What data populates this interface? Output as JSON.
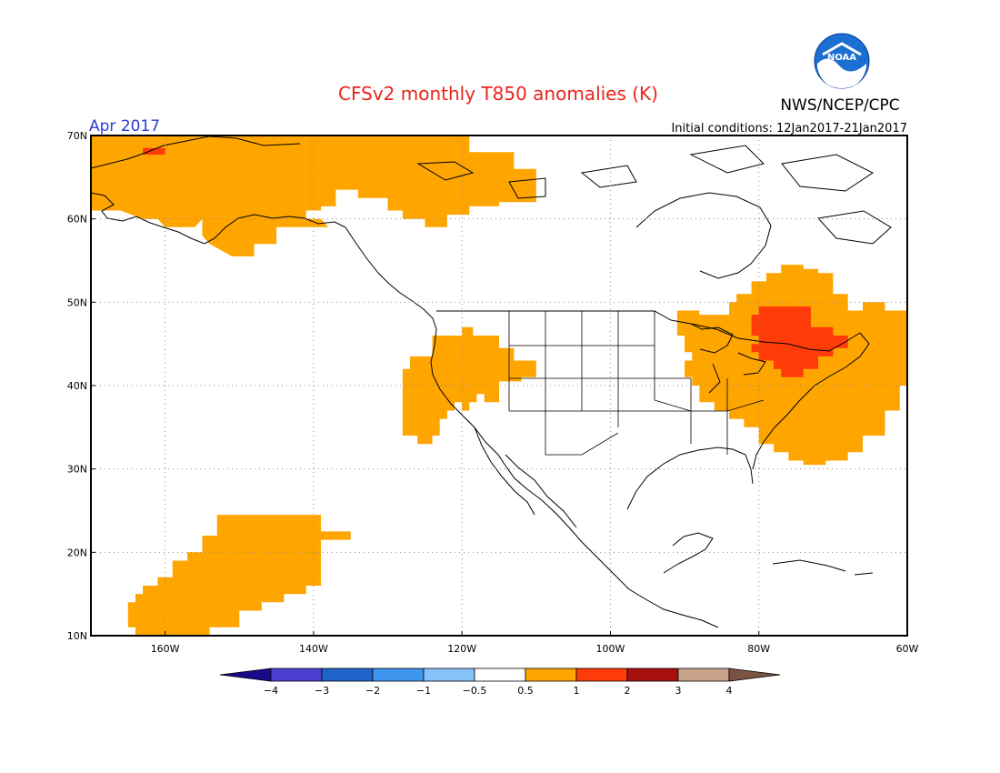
{
  "header": {
    "title": "CFSv2 monthly T850 anomalies (K)",
    "month": "Apr 2017",
    "agency": "NWS/NCEP/CPC",
    "logo_text": "NOAA",
    "initial_conditions": "Initial conditions: 12Jan2017-21Jan2017"
  },
  "map": {
    "lon_range": [
      -170,
      -60
    ],
    "lat_range": [
      10,
      70
    ],
    "grid_lines": true,
    "lat_labels": [
      "10N",
      "20N",
      "30N",
      "40N",
      "50N",
      "60N",
      "70N"
    ],
    "lon_labels": [
      "160W",
      "140W",
      "120W",
      "100W",
      "80W",
      "60W"
    ],
    "regions": [
      {
        "name": "alaska-yukon",
        "level": "0.5-1",
        "color": "#ffa500",
        "polygon": [
          [
            -170,
            70
          ],
          [
            -141,
            70
          ],
          [
            -141,
            60
          ],
          [
            -139,
            60
          ],
          [
            -138,
            59
          ],
          [
            -147,
            59
          ],
          [
            -147,
            58
          ],
          [
            -149,
            58
          ],
          [
            -149,
            59
          ],
          [
            -150,
            59
          ],
          [
            -150,
            60
          ],
          [
            -153,
            60
          ],
          [
            -155,
            60
          ],
          [
            -156,
            59
          ],
          [
            -158,
            59
          ],
          [
            -160,
            59
          ],
          [
            -161,
            60
          ],
          [
            -163,
            60
          ],
          [
            -166,
            61
          ],
          [
            -170,
            61
          ]
        ]
      },
      {
        "name": "alaska-south-lobe",
        "level": "0.5-1",
        "color": "#ffa500",
        "polygon": [
          [
            -155,
            61
          ],
          [
            -145,
            61
          ],
          [
            -145,
            57
          ],
          [
            -148,
            57
          ],
          [
            -148,
            55.5
          ],
          [
            -151,
            55.5
          ],
          [
            -153,
            56.5
          ],
          [
            -154,
            57
          ],
          [
            -155,
            58
          ]
        ]
      },
      {
        "name": "nw-canada",
        "level": "0.5-1",
        "color": "#ffa500",
        "polygon": [
          [
            -141,
            70
          ],
          [
            -119,
            70
          ],
          [
            -119,
            68
          ],
          [
            -113,
            68
          ],
          [
            -113,
            66
          ],
          [
            -110,
            66
          ],
          [
            -110,
            62
          ],
          [
            -115,
            62
          ],
          [
            -115,
            61.5
          ],
          [
            -119,
            61.5
          ],
          [
            -119,
            60.5
          ],
          [
            -122,
            60.5
          ],
          [
            -122,
            59
          ],
          [
            -125,
            59
          ],
          [
            -125,
            60
          ],
          [
            -128,
            60
          ],
          [
            -128,
            61
          ],
          [
            -130,
            61
          ],
          [
            -130,
            62.5
          ],
          [
            -134,
            62.5
          ],
          [
            -134,
            63.5
          ],
          [
            -137,
            63.5
          ],
          [
            -137,
            61.5
          ],
          [
            -139,
            61.5
          ],
          [
            -139,
            61
          ],
          [
            -141,
            61
          ]
        ]
      },
      {
        "name": "western-us",
        "level": "0.5-1",
        "color": "#ffa500",
        "polygon": [
          [
            -128,
            42
          ],
          [
            -127,
            42
          ],
          [
            -127,
            43.5
          ],
          [
            -124,
            43.5
          ],
          [
            -124,
            46
          ],
          [
            -120,
            46
          ],
          [
            -120,
            47
          ],
          [
            -118.5,
            47
          ],
          [
            -118.5,
            46
          ],
          [
            -115,
            46
          ],
          [
            -115,
            44.5
          ],
          [
            -113,
            44.5
          ],
          [
            -113,
            43
          ],
          [
            -110,
            43
          ],
          [
            -110,
            41
          ],
          [
            -112,
            41
          ],
          [
            -112,
            40.5
          ],
          [
            -115,
            40.5
          ],
          [
            -115,
            38
          ],
          [
            -117,
            38
          ],
          [
            -117,
            39
          ],
          [
            -118,
            39
          ],
          [
            -118,
            38
          ],
          [
            -119,
            38
          ],
          [
            -119,
            37
          ],
          [
            -120,
            37
          ],
          [
            -120,
            38
          ],
          [
            -121,
            38
          ],
          [
            -121,
            37
          ],
          [
            -122,
            37
          ],
          [
            -122,
            36
          ],
          [
            -123,
            36
          ],
          [
            -123,
            34
          ],
          [
            -124,
            34
          ],
          [
            -124,
            33
          ],
          [
            -126,
            33
          ],
          [
            -126,
            34
          ],
          [
            -128,
            34
          ]
        ]
      },
      {
        "name": "hawaii-region",
        "level": "0.5-1",
        "color": "#ffa500",
        "polygon": [
          [
            -165,
            12
          ],
          [
            -165,
            14
          ],
          [
            -164,
            14
          ],
          [
            -164,
            15
          ],
          [
            -163,
            15
          ],
          [
            -163,
            16
          ],
          [
            -161,
            16
          ],
          [
            -161,
            17
          ],
          [
            -159,
            17
          ],
          [
            -159,
            19
          ],
          [
            -157,
            19
          ],
          [
            -157,
            20
          ],
          [
            -155,
            20
          ],
          [
            -155,
            22
          ],
          [
            -153,
            22
          ],
          [
            -153,
            24.5
          ],
          [
            -139,
            24.5
          ],
          [
            -139,
            22.5
          ],
          [
            -135,
            22.5
          ],
          [
            -135,
            21.5
          ],
          [
            -139,
            21.5
          ],
          [
            -139,
            16
          ],
          [
            -141,
            16
          ],
          [
            -141,
            15
          ],
          [
            -144,
            15
          ],
          [
            -144,
            14
          ],
          [
            -147,
            14
          ],
          [
            -147,
            13
          ],
          [
            -150,
            13
          ],
          [
            -150,
            11
          ],
          [
            -154,
            11
          ],
          [
            -154,
            10
          ],
          [
            -164,
            10
          ],
          [
            -164,
            11
          ],
          [
            -165,
            11
          ]
        ]
      },
      {
        "name": "eastern-na",
        "level": "0.5-1",
        "color": "#ffa500",
        "polygon": [
          [
            -85,
            48.5
          ],
          [
            -84,
            48.5
          ],
          [
            -84,
            50
          ],
          [
            -83,
            50
          ],
          [
            -83,
            51
          ],
          [
            -81,
            51
          ],
          [
            -81,
            52.5
          ],
          [
            -79,
            52.5
          ],
          [
            -79,
            53.5
          ],
          [
            -77,
            53.5
          ],
          [
            -77,
            54.5
          ],
          [
            -74,
            54.5
          ],
          [
            -74,
            54
          ],
          [
            -72,
            54
          ],
          [
            -72,
            53.5
          ],
          [
            -70,
            53.5
          ],
          [
            -70,
            51
          ],
          [
            -68,
            51
          ],
          [
            -68,
            49
          ],
          [
            -66,
            49
          ],
          [
            -66,
            50
          ],
          [
            -63,
            50
          ],
          [
            -63,
            49
          ],
          [
            -60,
            49
          ],
          [
            -60,
            40
          ],
          [
            -61,
            40
          ],
          [
            -61,
            37
          ],
          [
            -63,
            37
          ],
          [
            -63,
            34
          ],
          [
            -66,
            34
          ],
          [
            -66,
            32
          ],
          [
            -68,
            32
          ],
          [
            -68,
            31
          ],
          [
            -71,
            31
          ],
          [
            -71,
            30.5
          ],
          [
            -74,
            30.5
          ],
          [
            -74,
            31
          ],
          [
            -76,
            31
          ],
          [
            -76,
            32
          ],
          [
            -78,
            32
          ],
          [
            -78,
            33
          ],
          [
            -80,
            33
          ],
          [
            -80,
            35
          ],
          [
            -82,
            35
          ],
          [
            -82,
            36
          ],
          [
            -84,
            36
          ],
          [
            -84,
            37
          ],
          [
            -86,
            37
          ],
          [
            -86,
            38
          ],
          [
            -88,
            38
          ],
          [
            -88,
            40
          ],
          [
            -89,
            40
          ],
          [
            -89,
            41
          ],
          [
            -90,
            41
          ],
          [
            -90,
            43
          ],
          [
            -89,
            43
          ],
          [
            -89,
            44
          ],
          [
            -90,
            44
          ],
          [
            -90,
            46
          ],
          [
            -91,
            46
          ],
          [
            -91,
            49
          ],
          [
            -88,
            49
          ],
          [
            -88,
            48.5
          ],
          [
            -86,
            48.5
          ]
        ]
      },
      {
        "name": "eastern-core",
        "level": "1-2",
        "color": "#ff3b0a",
        "polygon": [
          [
            -80,
            49.5
          ],
          [
            -73,
            49.5
          ],
          [
            -73,
            47
          ],
          [
            -70,
            47
          ],
          [
            -70,
            46
          ],
          [
            -68,
            46
          ],
          [
            -68,
            44.5
          ],
          [
            -70,
            44.5
          ],
          [
            -70,
            43.5
          ],
          [
            -72,
            43.5
          ],
          [
            -72,
            42
          ],
          [
            -74,
            42
          ],
          [
            -74,
            41
          ],
          [
            -77,
            41
          ],
          [
            -77,
            42
          ],
          [
            -78,
            42
          ],
          [
            -78,
            43
          ],
          [
            -80,
            43
          ],
          [
            -80,
            44
          ],
          [
            -81,
            44
          ],
          [
            -81,
            45
          ],
          [
            -80,
            45
          ],
          [
            -80,
            46
          ],
          [
            -81,
            46
          ],
          [
            -81,
            48.5
          ],
          [
            -80,
            48.5
          ]
        ]
      },
      {
        "name": "alaska-north-spot",
        "level": "1-2",
        "color": "#ff3b0a",
        "polygon": [
          [
            -163,
            68.5
          ],
          [
            -160,
            68.5
          ],
          [
            -160,
            67.7
          ],
          [
            -163,
            67.7
          ]
        ]
      }
    ]
  },
  "colorbar": {
    "labels": [
      "−4",
      "−3",
      "−2",
      "−1",
      "−0.5",
      "0.5",
      "1",
      "2",
      "3",
      "4"
    ],
    "colors": [
      "#1a0a8c",
      "#4b3fd0",
      "#1e64c8",
      "#3f96ee",
      "#86c1f7",
      "#ffffff",
      "#ffa500",
      "#ff3b0a",
      "#a5100c",
      "#c9a28c",
      "#7a5343"
    ]
  }
}
